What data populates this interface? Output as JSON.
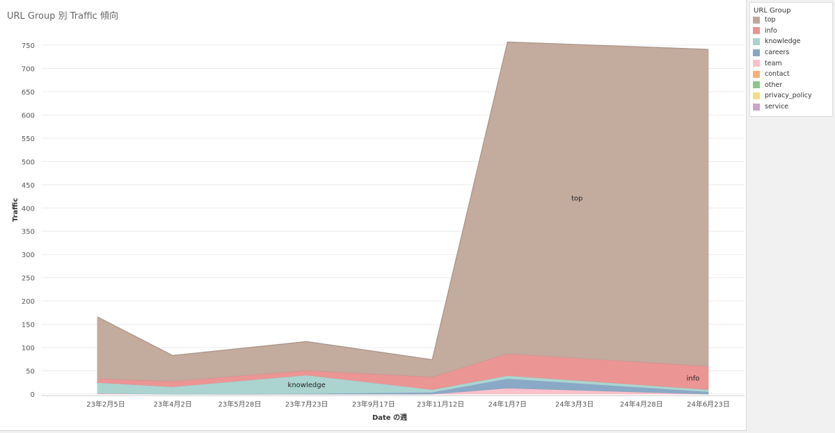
{
  "title": "URL Group 別 Traffic 傾向",
  "legend": {
    "title": "URL Group",
    "items": [
      {
        "label": "top",
        "color": "#c1a89b"
      },
      {
        "label": "info",
        "color": "#eb9292"
      },
      {
        "label": "knowledge",
        "color": "#a8d3cf"
      },
      {
        "label": "careers",
        "color": "#86a6c5"
      },
      {
        "label": "team",
        "color": "#ffbfc9"
      },
      {
        "label": "contact",
        "color": "#f6b276"
      },
      {
        "label": "other",
        "color": "#8bc68b"
      },
      {
        "label": "privacy_policy",
        "color": "#f5dc88"
      },
      {
        "label": "service",
        "color": "#cda3c7"
      }
    ]
  },
  "chart_data": {
    "type": "area",
    "stacked": true,
    "xlabel": "Date の週",
    "ylabel": "Traffic",
    "ylim": [
      0,
      760
    ],
    "yticks": [
      0,
      50,
      100,
      150,
      200,
      250,
      300,
      350,
      400,
      450,
      500,
      550,
      600,
      650,
      700,
      750
    ],
    "x_tick_labels": [
      "23年2月5日",
      "23年4月2日",
      "23年5月28日",
      "23年7月23日",
      "23年9月17日",
      "23年11月12日",
      "24年1月7日",
      "24年3月3日",
      "24年4月28日",
      "24年6月23日"
    ],
    "points": [
      "23年1月29日",
      "23年4月2日",
      "23年7月23日",
      "23年11月5日",
      "24年1月7日",
      "24年6月23日"
    ],
    "series": [
      {
        "name": "team",
        "values": [
          2,
          0,
          0,
          0,
          13,
          0
        ]
      },
      {
        "name": "careers",
        "values": [
          0,
          0,
          1,
          4,
          20,
          5
        ]
      },
      {
        "name": "knowledge",
        "values": [
          23,
          16,
          40,
          6,
          7,
          5
        ]
      },
      {
        "name": "info",
        "values": [
          8,
          12,
          10,
          27,
          47,
          50
        ]
      },
      {
        "name": "top",
        "values": [
          133,
          55,
          62,
          37,
          670,
          681
        ]
      }
    ],
    "annotations": [
      {
        "text": "top",
        "series": "top"
      },
      {
        "text": "info",
        "series": "info"
      },
      {
        "text": "knowledge",
        "series": "knowledge"
      }
    ],
    "grid": true,
    "legend_position": "right"
  }
}
